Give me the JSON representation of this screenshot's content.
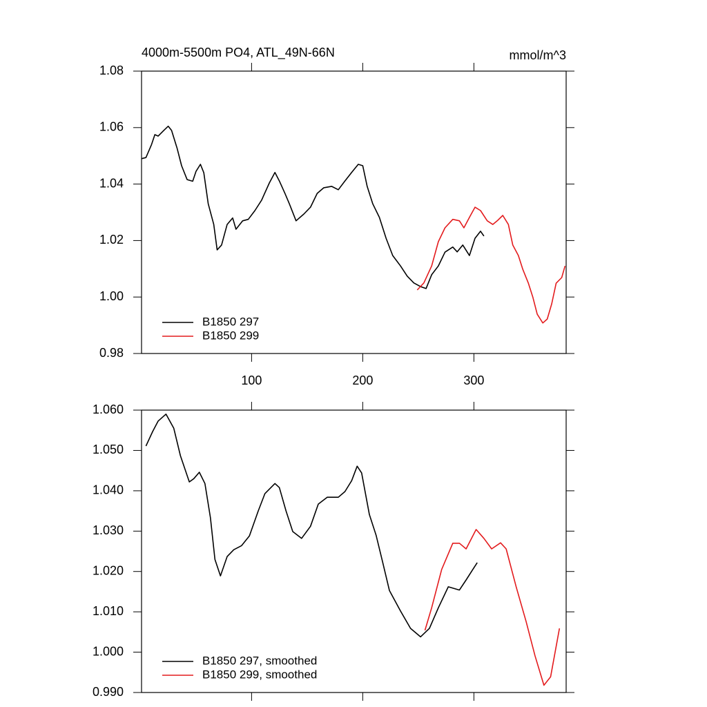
{
  "chart_data": [
    {
      "type": "line",
      "title": "4000m-5500m PO4, ATL_49N-66N",
      "units": "mmol/m^3",
      "xlim": [
        1,
        383
      ],
      "xticks": [
        100,
        200,
        300
      ],
      "ylim": [
        0.98,
        1.08
      ],
      "yticks": [
        0.98,
        {
          "value": 1,
          "label": "1.00"
        },
        1.02,
        1.04,
        1.06,
        1.08
      ],
      "legend": "lower left",
      "series": [
        {
          "name": "B1850 297",
          "color": "#000000",
          "x": [
            1,
            5,
            10,
            13,
            16,
            21,
            25,
            28,
            33,
            37,
            42,
            47,
            50,
            54,
            57,
            61,
            66,
            69,
            73,
            78,
            83,
            86,
            92,
            97,
            103,
            109,
            116,
            121,
            125,
            130,
            134,
            140,
            147,
            153,
            159,
            165,
            172,
            178,
            184,
            190,
            196,
            200,
            204,
            209,
            215,
            221,
            227,
            234,
            240,
            246,
            252,
            257,
            262,
            268,
            274,
            281,
            285,
            290,
            296,
            301,
            306,
            309
          ],
          "values": [
            1.049,
            1.0494,
            1.054,
            1.0575,
            1.057,
            1.059,
            1.0605,
            1.059,
            1.0527,
            1.0465,
            1.0416,
            1.041,
            1.0445,
            1.047,
            1.044,
            1.033,
            1.0257,
            1.0167,
            1.0184,
            1.0257,
            1.028,
            1.024,
            1.027,
            1.0275,
            1.0306,
            1.0343,
            1.0404,
            1.0441,
            1.0411,
            1.0367,
            1.033,
            1.027,
            1.0294,
            1.0318,
            1.0367,
            1.0387,
            1.0392,
            1.038,
            1.0411,
            1.0441,
            1.047,
            1.0465,
            1.0392,
            1.033,
            1.0282,
            1.0208,
            1.0147,
            1.011,
            1.0074,
            1.005,
            1.0037,
            1.003,
            1.0079,
            1.011,
            1.0159,
            1.0177,
            1.016,
            1.0184,
            1.0147,
            1.0208,
            1.0233,
            1.0216
          ]
        },
        {
          "name": "B1850 299",
          "color": "#e31a1c",
          "x": [
            249,
            255,
            262,
            268,
            274,
            281,
            287,
            291,
            296,
            301,
            306,
            312,
            317,
            321,
            326,
            331,
            335,
            340,
            344,
            349,
            353,
            357,
            362,
            366,
            370,
            374,
            379,
            382
          ],
          "values": [
            1.0025,
            1.005,
            1.011,
            1.0196,
            1.0245,
            1.0275,
            1.027,
            1.0245,
            1.0282,
            1.0318,
            1.0306,
            1.027,
            1.0257,
            1.027,
            1.0289,
            1.0257,
            1.0184,
            1.0147,
            1.0098,
            1.0049,
            1.0,
            0.9939,
            0.9908,
            0.9922,
            0.9976,
            1.0049,
            1.0069,
            1.011
          ]
        }
      ]
    },
    {
      "type": "line",
      "xlim": [
        1,
        383
      ],
      "ylim": [
        0.99,
        1.06
      ],
      "yticks": [
        {
          "value": 0.99,
          "label": "0.990"
        },
        {
          "value": 1,
          "label": "1.000"
        },
        {
          "value": 1.01,
          "label": "1.010"
        },
        {
          "value": 1.02,
          "label": "1.020"
        },
        {
          "value": 1.03,
          "label": "1.030"
        },
        {
          "value": 1.04,
          "label": "1.040"
        },
        {
          "value": 1.05,
          "label": "1.050"
        },
        {
          "value": 1.06,
          "label": "1.060"
        }
      ],
      "legend": "lower left",
      "series": [
        {
          "name": "B1850 297, smoothed",
          "color": "#000000",
          "x": [
            5,
            11,
            16,
            23,
            30,
            36,
            44,
            48,
            53,
            58,
            63,
            67,
            72,
            78,
            84,
            91,
            98,
            106,
            112,
            121,
            125,
            131,
            137,
            145,
            153,
            160,
            168,
            178,
            184,
            190,
            195,
            199,
            206,
            212,
            218,
            224,
            234,
            243,
            252,
            260,
            268,
            277,
            287,
            293,
            299,
            303
          ],
          "values": [
            1.0511,
            1.0547,
            1.0573,
            1.059,
            1.0555,
            1.0487,
            1.0422,
            1.043,
            1.0446,
            1.0418,
            1.0333,
            1.023,
            1.0189,
            1.0237,
            1.0254,
            1.0264,
            1.0288,
            1.035,
            1.0393,
            1.0418,
            1.0408,
            1.035,
            1.0299,
            1.0282,
            1.0312,
            1.0367,
            1.0384,
            1.0384,
            1.0398,
            1.0425,
            1.0461,
            1.0444,
            1.0341,
            1.029,
            1.0222,
            1.0153,
            1.0102,
            1.0059,
            1.0038,
            1.0059,
            1.011,
            1.0162,
            1.0154,
            1.0179,
            1.0205,
            1.0222
          ]
        },
        {
          "name": "B1850 299, smoothed",
          "color": "#e31a1c",
          "x": [
            256,
            262,
            271,
            281,
            287,
            293,
            302,
            309,
            316,
            324,
            329,
            338,
            347,
            355,
            363,
            369,
            377
          ],
          "values": [
            1.0054,
            1.011,
            1.0205,
            1.027,
            1.027,
            1.0256,
            1.0304,
            1.0282,
            1.0256,
            1.0271,
            1.0256,
            1.0162,
            1.0076,
            0.9991,
            0.9918,
            0.9939,
            1.0059
          ]
        }
      ]
    }
  ]
}
